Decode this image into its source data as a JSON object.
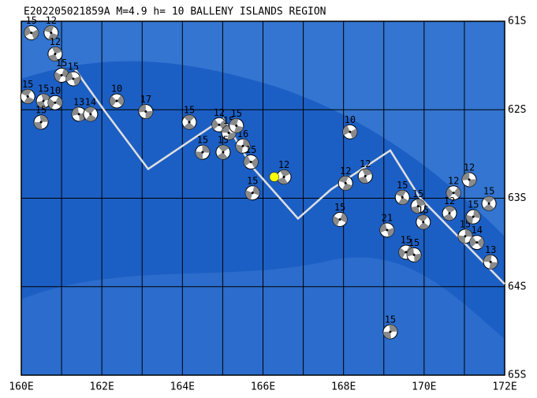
{
  "map": {
    "title": "E202205021859A M=4.9 h= 10 BALLENY ISLANDS REGION",
    "xlim": [
      160,
      172
    ],
    "ylim": [
      -65,
      -61
    ],
    "xticks": [
      {
        "value": 160,
        "label": "160E"
      },
      {
        "value": 162,
        "label": "162E"
      },
      {
        "value": 164,
        "label": "164E"
      },
      {
        "value": 166,
        "label": "166E"
      },
      {
        "value": 168,
        "label": "168E"
      },
      {
        "value": 170,
        "label": "170E"
      },
      {
        "value": 172,
        "label": "172E"
      }
    ],
    "x_minor_ticks": [
      161,
      163,
      165,
      167,
      169,
      171
    ],
    "yticks": [
      {
        "value": -61,
        "label": "61S"
      },
      {
        "value": -62,
        "label": "62S"
      },
      {
        "value": -63,
        "label": "63S"
      },
      {
        "value": -64,
        "label": "64S"
      },
      {
        "value": -65,
        "label": "65S"
      }
    ],
    "plate_boundary": {
      "lon": [
        161.33,
        162.08,
        163.15,
        165.01,
        165.74,
        166.87,
        167.69,
        169.16,
        169.89,
        172.0
      ],
      "lat": [
        -61.54,
        -62.02,
        -62.67,
        -62.1,
        -62.65,
        -63.23,
        -62.9,
        -62.46,
        -62.99,
        -63.97
      ]
    },
    "main_event": {
      "lon": 166.28,
      "lat": -62.76,
      "color": "#ffff00"
    },
    "events": [
      {
        "lon": 160.25,
        "lat": -61.13,
        "depth": 15
      },
      {
        "lon": 160.74,
        "lat": -61.13,
        "depth": 12
      },
      {
        "lon": 160.84,
        "lat": -61.37,
        "depth": 12
      },
      {
        "lon": 161.0,
        "lat": -61.61,
        "depth": 15
      },
      {
        "lon": 161.29,
        "lat": -61.65,
        "depth": 15
      },
      {
        "lon": 160.16,
        "lat": -61.85,
        "depth": 15
      },
      {
        "lon": 160.55,
        "lat": -61.9,
        "depth": 15
      },
      {
        "lon": 160.84,
        "lat": -61.92,
        "depth": 10
      },
      {
        "lon": 161.43,
        "lat": -62.05,
        "depth": 13
      },
      {
        "lon": 161.72,
        "lat": -62.05,
        "depth": 14
      },
      {
        "lon": 160.49,
        "lat": -62.14,
        "depth": 15
      },
      {
        "lon": 162.37,
        "lat": -61.9,
        "depth": 10
      },
      {
        "lon": 163.09,
        "lat": -62.02,
        "depth": 17
      },
      {
        "lon": 164.17,
        "lat": -62.14,
        "depth": 15
      },
      {
        "lon": 164.5,
        "lat": -62.48,
        "depth": 15
      },
      {
        "lon": 164.91,
        "lat": -62.17,
        "depth": 12
      },
      {
        "lon": 165.15,
        "lat": -62.26,
        "depth": 15
      },
      {
        "lon": 165.01,
        "lat": -62.48,
        "depth": 15
      },
      {
        "lon": 165.5,
        "lat": -62.41,
        "depth": 16
      },
      {
        "lon": 165.7,
        "lat": -62.59,
        "depth": 15
      },
      {
        "lon": 165.34,
        "lat": -62.18,
        "depth": 15
      },
      {
        "lon": 166.52,
        "lat": -62.76,
        "depth": 12
      },
      {
        "lon": 165.74,
        "lat": -62.94,
        "depth": 15
      },
      {
        "lon": 168.16,
        "lat": -62.25,
        "depth": 10
      },
      {
        "lon": 168.05,
        "lat": -62.83,
        "depth": 12
      },
      {
        "lon": 168.54,
        "lat": -62.75,
        "depth": 12
      },
      {
        "lon": 167.91,
        "lat": -63.24,
        "depth": 15
      },
      {
        "lon": 169.08,
        "lat": -63.36,
        "depth": 21
      },
      {
        "lon": 169.46,
        "lat": -62.99,
        "depth": 15
      },
      {
        "lon": 169.85,
        "lat": -63.09,
        "depth": 15
      },
      {
        "lon": 169.55,
        "lat": -63.61,
        "depth": 15
      },
      {
        "lon": 169.75,
        "lat": -63.64,
        "depth": 15
      },
      {
        "lon": 169.98,
        "lat": -63.27,
        "depth": 15
      },
      {
        "lon": 169.16,
        "lat": -64.51,
        "depth": 15
      },
      {
        "lon": 170.73,
        "lat": -62.94,
        "depth": 12
      },
      {
        "lon": 171.12,
        "lat": -62.79,
        "depth": 12
      },
      {
        "lon": 171.61,
        "lat": -63.06,
        "depth": 15
      },
      {
        "lon": 171.02,
        "lat": -63.43,
        "depth": 15
      },
      {
        "lon": 171.31,
        "lat": -63.5,
        "depth": 14
      },
      {
        "lon": 171.65,
        "lat": -63.72,
        "depth": 13
      },
      {
        "lon": 170.63,
        "lat": -63.17,
        "depth": 12
      },
      {
        "lon": 171.22,
        "lat": -63.21,
        "depth": 15
      }
    ]
  }
}
